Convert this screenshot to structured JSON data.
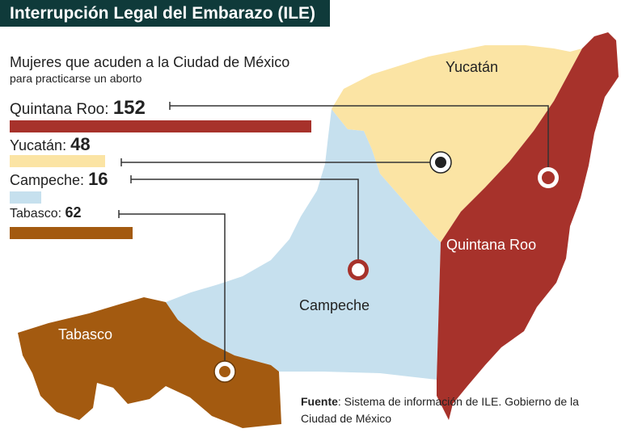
{
  "header": {
    "title": "Interrupción Legal del Embarazo (ILE)"
  },
  "subtitle": {
    "main": "Mujeres que acuden a la Ciudad de México",
    "sub": "para practicarse un aborto"
  },
  "chart_data": {
    "type": "bar",
    "categories": [
      "Quintana Roo",
      "Yucatán",
      "Campeche",
      "Tabasco"
    ],
    "values": [
      152,
      48,
      16,
      62
    ],
    "colors": [
      "#a7322b",
      "#fbe4a4",
      "#c6e0ee",
      "#a35a10"
    ],
    "xlim": [
      0,
      152
    ]
  },
  "states": {
    "yucatan": {
      "name": "Yucatán",
      "color": "#fbe4a4"
    },
    "quintana_roo": {
      "name": "Quintana Roo",
      "color": "#a7322b"
    },
    "campeche": {
      "name": "Campeche",
      "color": "#c6e0ee"
    },
    "tabasco": {
      "name": "Tabasco",
      "color": "#a35a10"
    }
  },
  "source": {
    "label": "Fuente",
    "text": ": Sistema de información de ILE. Gobierno de la Ciudad de México"
  },
  "colors": {
    "title_bg": "#0f3a3a",
    "leader": "#333333",
    "marker_ring": "#a7322b"
  }
}
